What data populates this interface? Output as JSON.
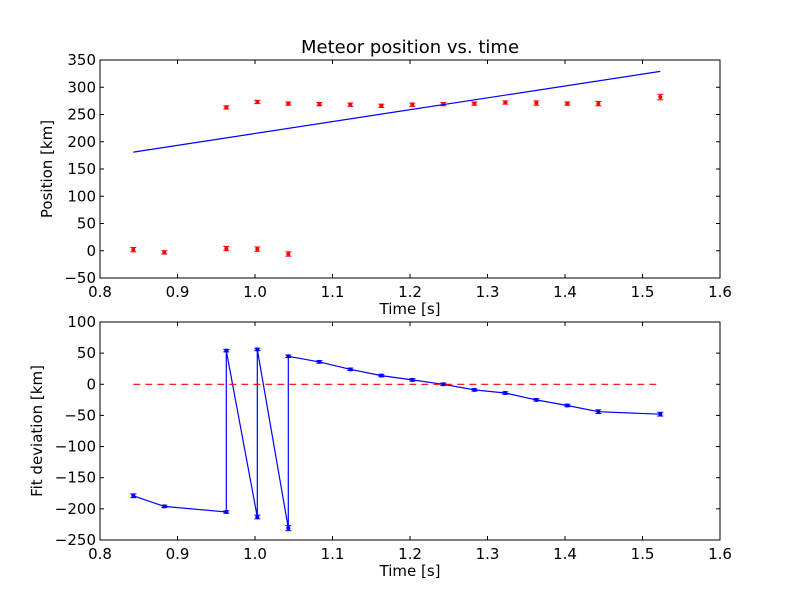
{
  "chart_data": [
    {
      "type": "scatter",
      "title": "Meteor position vs. time",
      "xlabel": "Time [s]",
      "ylabel": "Position [km]",
      "xlim": [
        0.8,
        1.6
      ],
      "ylim": [
        -50,
        350
      ],
      "xticks": [
        "0.8",
        "0.9",
        "1.0",
        "1.1",
        "1.2",
        "1.3",
        "1.4",
        "1.5",
        "1.6"
      ],
      "yticks": [
        "−50",
        "0",
        "50",
        "100",
        "150",
        "200",
        "250",
        "300",
        "350"
      ],
      "grid": false,
      "series": [
        {
          "style": "errorbar-points",
          "color": "#ff0000",
          "x": [
            0.843,
            0.883,
            0.963,
            1.003,
            1.043,
            1.083,
            1.123,
            1.163,
            1.203,
            1.243,
            1.283,
            1.323,
            1.363,
            1.403,
            1.443,
            1.523
          ],
          "y": [
            2,
            -3,
            4,
            3,
            -6,
            269,
            268,
            266,
            268,
            269,
            270,
            272,
            271,
            270,
            270,
            282
          ],
          "err": [
            4,
            3,
            4,
            4,
            4,
            3,
            3,
            3,
            3,
            3,
            3,
            3,
            4,
            3,
            4,
            5
          ]
        },
        {
          "style": "errorbar-points",
          "color": "#ff0000",
          "x": [
            0.963,
            1.003,
            1.043
          ],
          "y": [
            263,
            273,
            270
          ],
          "err": [
            3,
            3,
            3
          ]
        },
        {
          "style": "line",
          "color": "#0000ff",
          "x": [
            0.843,
            1.523
          ],
          "y": [
            181,
            329
          ]
        }
      ]
    },
    {
      "type": "line",
      "title": "",
      "xlabel": "Time [s]",
      "ylabel": "Fit deviation [km]",
      "xlim": [
        0.8,
        1.6
      ],
      "ylim": [
        -250,
        100
      ],
      "xticks": [
        "0.8",
        "0.9",
        "1.0",
        "1.1",
        "1.2",
        "1.3",
        "1.4",
        "1.5",
        "1.6"
      ],
      "yticks": [
        "−250",
        "−200",
        "−150",
        "−100",
        "−50",
        "0",
        "50",
        "100"
      ],
      "grid": false,
      "series": [
        {
          "style": "line-errorbar",
          "color": "#0000ff",
          "x": [
            0.843,
            0.883,
            0.963,
            0.963,
            1.003,
            1.003,
            1.043,
            1.043,
            1.083,
            1.123,
            1.163,
            1.203,
            1.243,
            1.283,
            1.323,
            1.363,
            1.403,
            1.443,
            1.523
          ],
          "y": [
            -179,
            -196,
            -205,
            54,
            -213,
            56,
            -231,
            45,
            36,
            24,
            14,
            7,
            0,
            -9,
            -14,
            -25,
            -34,
            -44,
            -48
          ],
          "err": [
            3,
            2,
            2,
            2,
            3,
            2,
            4,
            2,
            2,
            2,
            2,
            2,
            2,
            2,
            2,
            2,
            2,
            3,
            3
          ]
        },
        {
          "style": "dashed-line",
          "color": "#ff0000",
          "x": [
            0.843,
            1.523
          ],
          "y": [
            0,
            0
          ]
        }
      ]
    }
  ]
}
